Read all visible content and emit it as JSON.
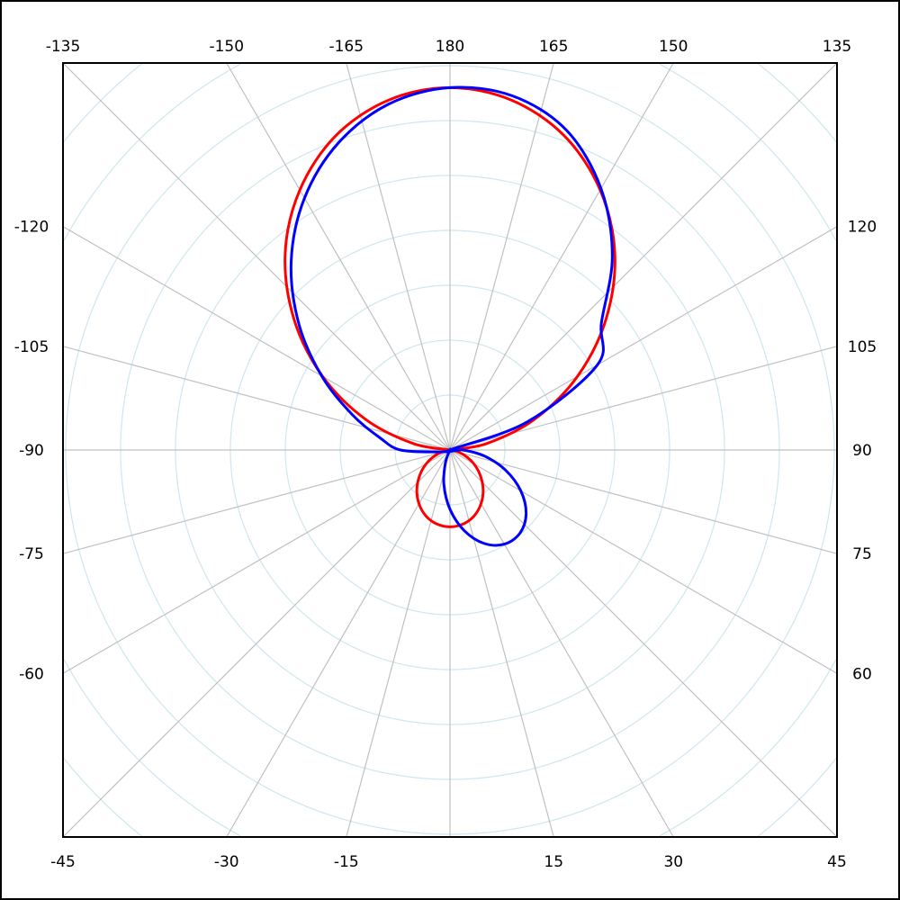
{
  "chart_data": {
    "type": "polar-line",
    "angle_zero": "bottom",
    "angle_direction": "clockwise-from-bottom toward right",
    "angle_step_deg": 15,
    "radial_rings": 10,
    "radial_range": [
      0,
      10
    ],
    "grid": true,
    "colors": {
      "ring": "#cfe6ee",
      "spoke": "#c0c0c0",
      "frame": "#000000"
    },
    "angle_labels": {
      "top": [
        "-135",
        "-150",
        "-165",
        "180",
        "165",
        "150",
        "135"
      ],
      "left": [
        "-120",
        "-105",
        "-90",
        "-75",
        "-60"
      ],
      "right": [
        "120",
        "105",
        "90",
        "75",
        "60"
      ],
      "bottom": [
        "-45",
        "-30",
        "-15",
        "15",
        "30",
        "45"
      ]
    },
    "angle_label_values": {
      "top": [
        -135,
        -150,
        -165,
        180,
        165,
        150,
        135
      ],
      "left": [
        -120,
        -105,
        -90,
        -75,
        -60
      ],
      "right": [
        120,
        105,
        90,
        75,
        60
      ],
      "bottom": [
        -45,
        -30,
        -15,
        15,
        30,
        45
      ]
    },
    "angles": [
      -180,
      -170,
      -160,
      -150,
      -140,
      -130,
      -120,
      -110,
      -100,
      -90,
      -80,
      -70,
      -60,
      -50,
      -40,
      -30,
      -20,
      -10,
      0,
      10,
      20,
      30,
      40,
      50,
      60,
      70,
      80,
      90,
      100,
      110,
      120,
      130,
      140,
      150,
      160,
      170
    ],
    "series": [
      {
        "color": "#ff0000",
        "values": [
          6.6,
          6.47,
          6.09,
          5.47,
          4.67,
          3.71,
          2.68,
          1.64,
          0.68,
          0,
          0.1,
          0.28,
          0.5,
          0.72,
          0.94,
          1.13,
          1.28,
          1.37,
          1.4,
          1.37,
          1.28,
          1.13,
          0.94,
          0.72,
          0.5,
          0.28,
          0.1,
          0,
          0.68,
          1.64,
          2.68,
          3.71,
          4.67,
          5.47,
          6.09,
          6.47
        ]
      },
      {
        "color": "#0000ff",
        "values": [
          6.6,
          6.4,
          5.95,
          5.3,
          4.5,
          3.6,
          2.7,
          1.9,
          1.3,
          0.9,
          0.2,
          0.05,
          0,
          0,
          0,
          0,
          0.24,
          0.64,
          1.08,
          1.49,
          1.81,
          1.98,
          1.98,
          1.81,
          1.49,
          1.08,
          0.64,
          0.24,
          0,
          1.5,
          3.1,
          3.6,
          4.6,
          5.5,
          6.2,
          6.55
        ]
      }
    ]
  }
}
